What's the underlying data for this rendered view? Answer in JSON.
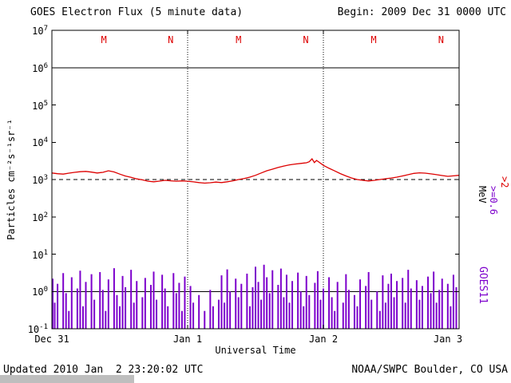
{
  "header": {
    "title": "GOES Electron Flux (5 minute data)",
    "begin": "Begin: 2009 Dec 31 0000 UTC"
  },
  "footer": {
    "updated": "Updated 2010 Jan  2 23:20:02 UTC",
    "credit": "NOAA/SWPC Boulder, CO USA"
  },
  "axes": {
    "y_title": "Particles cm⁻²s⁻¹sr⁻¹",
    "x_title": "Universal Time",
    "y_ticks": [
      {
        "base": "10",
        "exp": "7"
      },
      {
        "base": "10",
        "exp": "6"
      },
      {
        "base": "10",
        "exp": "5"
      },
      {
        "base": "10",
        "exp": "4"
      },
      {
        "base": "10",
        "exp": "3"
      },
      {
        "base": "10",
        "exp": "2"
      },
      {
        "base": "10",
        "exp": "1"
      },
      {
        "base": "10",
        "exp": "0"
      },
      {
        "base": "10",
        "exp": "-1"
      }
    ],
    "x_ticks": [
      {
        "label": "Dec 31",
        "hour": 0
      },
      {
        "label": "Jan 1",
        "hour": 24
      },
      {
        "label": "Jan 2",
        "hour": 48
      },
      {
        "label": "Jan 3",
        "hour": 72
      }
    ]
  },
  "right_labels": {
    "threshold_red": ">2",
    "threshold_purple": ">=0.6",
    "units": "MeV",
    "satellite": "GOES11"
  },
  "colors": {
    "red_trace": "#dd0000",
    "purple_bars": "#7d00cc",
    "marker_text": "#dd0000",
    "frame": "#000000",
    "background": "#ffffff",
    "grey_strip": "#bebebe"
  },
  "chart_data": {
    "type": "line",
    "title": "GOES Electron Flux (5 minute data)",
    "xlabel": "Universal Time",
    "ylabel": "Particles cm⁻²s⁻¹sr⁻¹",
    "x_unit": "hours since 2009 Dec 31 0000 UTC",
    "x_range": [
      0,
      72
    ],
    "y_scale": "log10",
    "y_range": [
      0.1,
      10000000
    ],
    "grid": false,
    "reference_lines": {
      "dashed_alert_flux": 1000,
      "solid_flux": [
        1000000,
        1
      ]
    },
    "day_boundaries_hours": [
      24,
      48
    ],
    "local_time_markers": [
      {
        "label": "M",
        "hour": 9.2
      },
      {
        "label": "N",
        "hour": 21.0
      },
      {
        "label": "M",
        "hour": 33.0
      },
      {
        "label": "N",
        "hour": 44.9
      },
      {
        "label": "M",
        "hour": 56.9
      },
      {
        "label": "N",
        "hour": 68.8
      }
    ],
    "series": [
      {
        "name": ">2 MeV",
        "style": "line",
        "color": "#dd0000",
        "points": [
          [
            0,
            1500
          ],
          [
            1,
            1430
          ],
          [
            2,
            1400
          ],
          [
            3,
            1480
          ],
          [
            4,
            1560
          ],
          [
            5,
            1620
          ],
          [
            6,
            1650
          ],
          [
            7,
            1580
          ],
          [
            8,
            1500
          ],
          [
            9,
            1560
          ],
          [
            10,
            1720
          ],
          [
            11,
            1600
          ],
          [
            12,
            1400
          ],
          [
            13,
            1240
          ],
          [
            14,
            1140
          ],
          [
            15,
            1040
          ],
          [
            16,
            980
          ],
          [
            17,
            900
          ],
          [
            18,
            870
          ],
          [
            19,
            905
          ],
          [
            20,
            950
          ],
          [
            21,
            925
          ],
          [
            22,
            900
          ],
          [
            23,
            920
          ],
          [
            24,
            900
          ],
          [
            25,
            865
          ],
          [
            26,
            830
          ],
          [
            27,
            800
          ],
          [
            28,
            820
          ],
          [
            29,
            855
          ],
          [
            30,
            830
          ],
          [
            31,
            870
          ],
          [
            32,
            925
          ],
          [
            33,
            1000
          ],
          [
            34,
            1060
          ],
          [
            35,
            1160
          ],
          [
            36,
            1300
          ],
          [
            37,
            1500
          ],
          [
            38,
            1720
          ],
          [
            39,
            1900
          ],
          [
            40,
            2100
          ],
          [
            41,
            2300
          ],
          [
            42,
            2480
          ],
          [
            43,
            2600
          ],
          [
            44,
            2700
          ],
          [
            45,
            2820
          ],
          [
            45.5,
            3000
          ],
          [
            46,
            3600
          ],
          [
            46.4,
            2850
          ],
          [
            46.8,
            3250
          ],
          [
            47.2,
            2950
          ],
          [
            48,
            2400
          ],
          [
            49,
            2000
          ],
          [
            50,
            1700
          ],
          [
            51,
            1440
          ],
          [
            52,
            1250
          ],
          [
            53,
            1100
          ],
          [
            54,
            1000
          ],
          [
            55,
            950
          ],
          [
            56,
            915
          ],
          [
            57,
            950
          ],
          [
            58,
            1000
          ],
          [
            59,
            1050
          ],
          [
            60,
            1100
          ],
          [
            61,
            1160
          ],
          [
            62,
            1250
          ],
          [
            63,
            1350
          ],
          [
            64,
            1460
          ],
          [
            65,
            1510
          ],
          [
            66,
            1480
          ],
          [
            67,
            1420
          ],
          [
            68,
            1350
          ],
          [
            69,
            1280
          ],
          [
            70,
            1220
          ],
          [
            71,
            1255
          ],
          [
            72,
            1300
          ]
        ]
      },
      {
        "name": ">=0.6 MeV",
        "style": "bars",
        "color": "#7d00cc",
        "bar_interval_hours": 0.5,
        "values": [
          2.2,
          0.5,
          1.6,
          0,
          3.1,
          0.9,
          0.3,
          2.4,
          0,
          1.2,
          3.6,
          0.4,
          1.8,
          0,
          2.9,
          0.6,
          0,
          3.3,
          1.1,
          0.3,
          2.1,
          0,
          4.2,
          0.8,
          0.4,
          2.6,
          1.3,
          0,
          3.8,
          0.5,
          1.9,
          0,
          0.7,
          2.3,
          0,
          1.5,
          3.4,
          0.6,
          0,
          2.8,
          1.2,
          0.4,
          0,
          3.1,
          0.9,
          1.7,
          0.3,
          2.5,
          0,
          1.4,
          0.5,
          0,
          0.8,
          0,
          0.3,
          0,
          1.1,
          0.4,
          0,
          0.6,
          2.7,
          0.5,
          3.9,
          1.0,
          0,
          2.2,
          0.7,
          1.6,
          0,
          3.0,
          0.4,
          1.3,
          4.6,
          1.8,
          0.6,
          5.2,
          2.4,
          0.9,
          3.7,
          0,
          1.5,
          4.1,
          0.7,
          2.8,
          0.5,
          1.9,
          0,
          3.2,
          1.0,
          0.4,
          2.6,
          0.8,
          0,
          1.7,
          3.5,
          0.6,
          1.2,
          0,
          2.4,
          0.7,
          0.3,
          1.8,
          0,
          0.5,
          2.9,
          1.1,
          0,
          0.8,
          0.4,
          2.1,
          0,
          1.4,
          3.3,
          0.6,
          0,
          1.0,
          0.3,
          2.7,
          0.5,
          1.6,
          3.0,
          0.7,
          1.9,
          0,
          2.3,
          0.5,
          3.8,
          1.2,
          0,
          2.0,
          0.6,
          1.4,
          0,
          2.5,
          0.9,
          3.4,
          0.5,
          1.1,
          2.2,
          0,
          1.6,
          0.4,
          2.8,
          1.3
        ]
      }
    ]
  }
}
